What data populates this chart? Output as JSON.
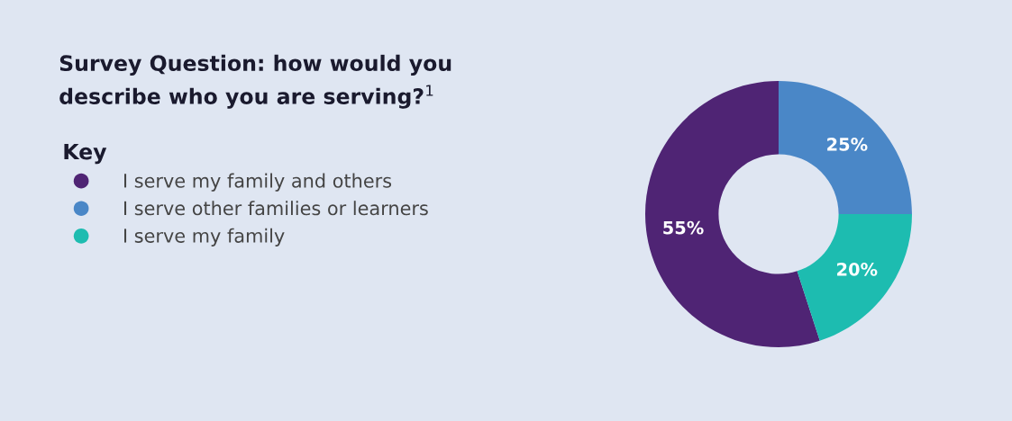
{
  "chart_data": {
    "type": "donut",
    "title": "Survey Question: how would you\ndescribe who you are serving?$^{1}$",
    "legend_title": "Key",
    "legend": "left",
    "value_labels": [
      "55%",
      "25%",
      "20%"
    ],
    "categories": [
      "I serve my family and others",
      "I serve other families or learners",
      "I serve my family"
    ],
    "values": [
      55,
      25,
      20
    ],
    "colors": [
      "#4f2474",
      "#4a87c7",
      "#1dbcb0"
    ]
  }
}
